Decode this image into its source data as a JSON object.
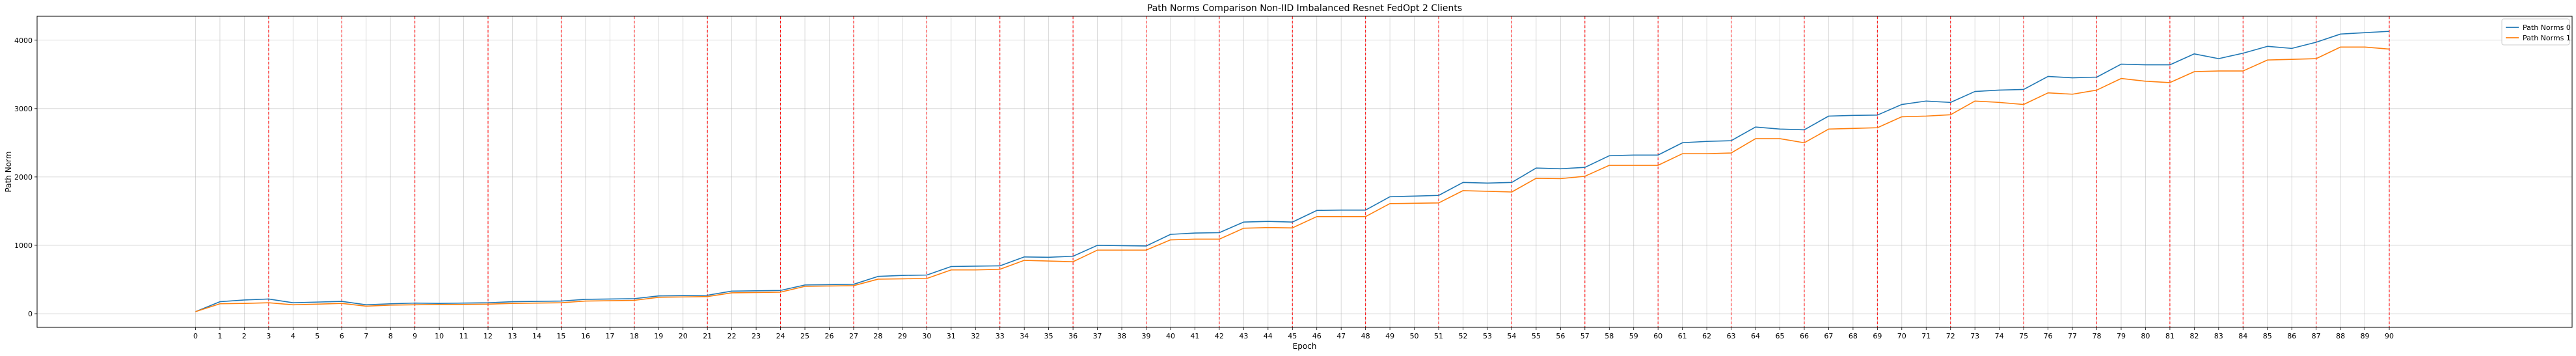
{
  "chart_data": {
    "type": "line",
    "title": "Path Norms Comparison Non-IID Imbalanced Resnet FedOpt 2 Clients",
    "xlabel": "Epoch",
    "ylabel": "Path Norm",
    "xlim": [
      -6.5,
      97.5
    ],
    "ylim": [
      -200,
      4350
    ],
    "xticks": [
      0,
      1,
      2,
      3,
      4,
      5,
      6,
      7,
      8,
      9,
      10,
      11,
      12,
      13,
      14,
      15,
      16,
      17,
      18,
      19,
      20,
      21,
      22,
      23,
      24,
      25,
      26,
      27,
      28,
      29,
      30,
      31,
      32,
      33,
      34,
      35,
      36,
      37,
      38,
      39,
      40,
      41,
      42,
      43,
      44,
      45,
      46,
      47,
      48,
      49,
      50,
      51,
      52,
      53,
      54,
      55,
      56,
      57,
      58,
      59,
      60,
      61,
      62,
      63,
      64,
      65,
      66,
      67,
      68,
      69,
      70,
      71,
      72,
      73,
      74,
      75,
      76,
      77,
      78,
      79,
      80,
      81,
      82,
      83,
      84,
      85,
      86,
      87,
      88,
      89,
      90
    ],
    "yticks": [
      0,
      1000,
      2000,
      3000,
      4000
    ],
    "grid": true,
    "legend_position": "top-right",
    "vertical_markers": {
      "color": "#ff0000",
      "style": "dashed",
      "x": [
        3,
        6,
        9,
        12,
        15,
        18,
        21,
        24,
        27,
        30,
        33,
        36,
        39,
        42,
        45,
        48,
        51,
        54,
        57,
        60,
        63,
        66,
        69,
        72,
        75,
        78,
        81,
        84,
        87,
        90
      ]
    },
    "series": [
      {
        "name": "Path Norms 0",
        "color": "#1f77b4",
        "values": [
          30,
          175,
          200,
          215,
          160,
          170,
          180,
          130,
          145,
          155,
          150,
          155,
          160,
          175,
          180,
          185,
          210,
          215,
          220,
          260,
          265,
          270,
          330,
          335,
          340,
          420,
          425,
          430,
          545,
          560,
          565,
          690,
          695,
          700,
          830,
          825,
          840,
          1000,
          995,
          990,
          1160,
          1180,
          1185,
          1340,
          1350,
          1340,
          1510,
          1515,
          1515,
          1710,
          1720,
          1730,
          1920,
          1910,
          1920,
          2130,
          2120,
          2140,
          2310,
          2320,
          2320,
          2500,
          2520,
          2530,
          2730,
          2700,
          2690,
          2890,
          2900,
          2905,
          3060,
          3110,
          3090,
          3250,
          3270,
          3280,
          3470,
          3450,
          3460,
          3650,
          3640,
          3640,
          3800,
          3730,
          3810,
          3910,
          3880,
          3970,
          4090,
          4110,
          4130
        ]
      },
      {
        "name": "Path Norms 1",
        "color": "#ff7f0e",
        "values": [
          30,
          145,
          150,
          160,
          130,
          140,
          150,
          110,
          125,
          130,
          135,
          135,
          140,
          150,
          155,
          160,
          185,
          190,
          195,
          240,
          245,
          250,
          305,
          310,
          315,
          400,
          405,
          410,
          505,
          510,
          515,
          640,
          640,
          650,
          780,
          770,
          760,
          930,
          930,
          930,
          1080,
          1090,
          1090,
          1250,
          1260,
          1255,
          1420,
          1420,
          1420,
          1610,
          1615,
          1620,
          1800,
          1790,
          1780,
          1980,
          1975,
          2010,
          2170,
          2170,
          2170,
          2340,
          2340,
          2350,
          2560,
          2560,
          2500,
          2700,
          2710,
          2720,
          2880,
          2890,
          2910,
          3110,
          3090,
          3060,
          3230,
          3210,
          3270,
          3440,
          3400,
          3380,
          3540,
          3550,
          3550,
          3710,
          3720,
          3730,
          3900,
          3900,
          3870
        ]
      }
    ]
  }
}
